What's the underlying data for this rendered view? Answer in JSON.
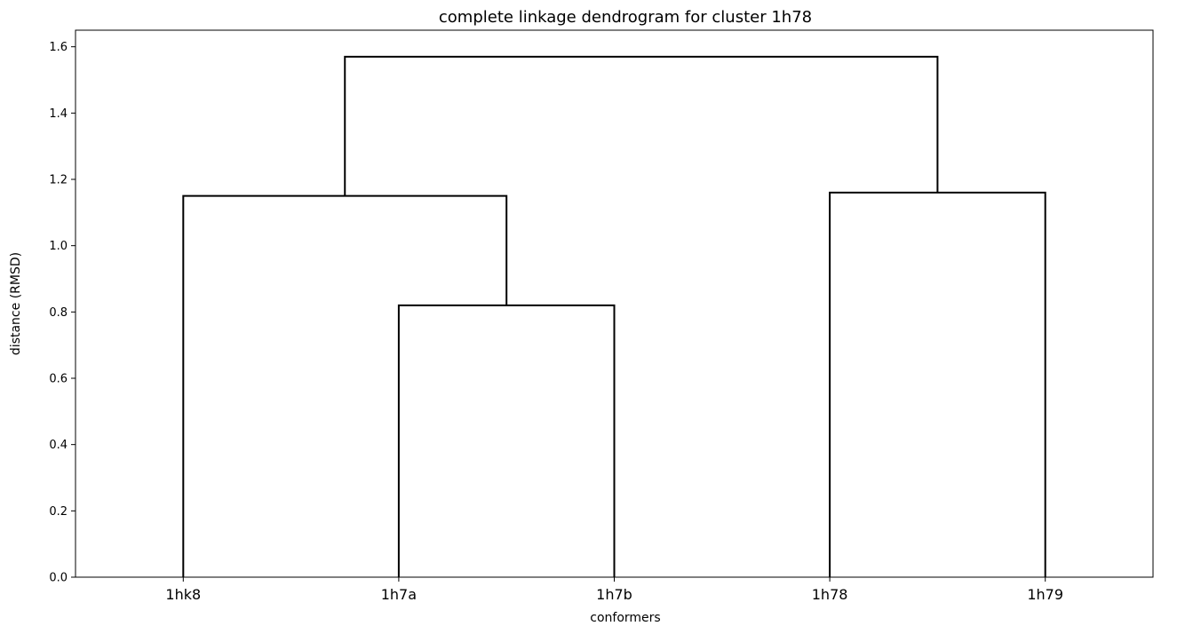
{
  "chart_data": {
    "type": "dendrogram",
    "title": "complete linkage dendrogram for cluster 1h78",
    "xlabel": "conformers",
    "ylabel": "distance (RMSD)",
    "ylim": [
      0,
      1.65
    ],
    "yticks": [
      "0.0",
      "0.2",
      "0.4",
      "0.6",
      "0.8",
      "1.0",
      "1.2",
      "1.4",
      "1.6"
    ],
    "leaves": [
      "1hk8",
      "1h7a",
      "1h7b",
      "1h78",
      "1h79"
    ],
    "merges": [
      {
        "left": "1h7a",
        "right": "1h7b",
        "height": 0.82
      },
      {
        "left": "1hk8",
        "right": "1h7a+1h7b",
        "height": 1.15
      },
      {
        "left": "1h78",
        "right": "1h79",
        "height": 1.16
      },
      {
        "left": "1hk8+1h7a+1h7b",
        "right": "1h78+1h79",
        "height": 1.57
      }
    ],
    "link_color": "#000000",
    "grid": false
  }
}
